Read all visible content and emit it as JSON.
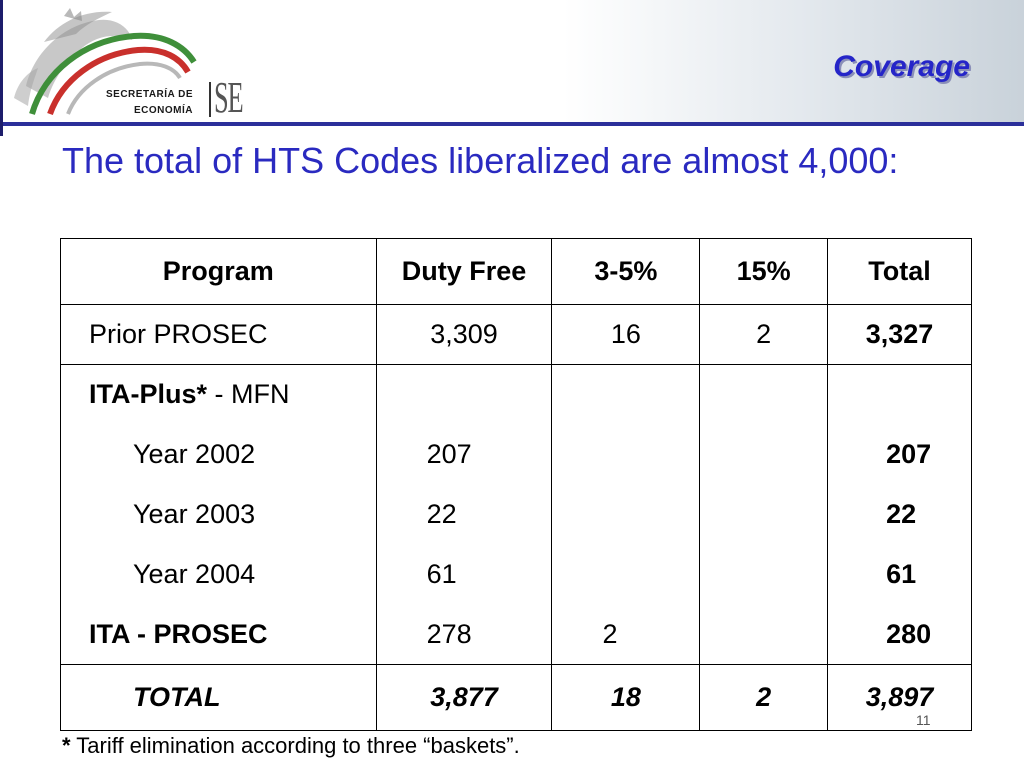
{
  "header": {
    "title": "Coverage",
    "logo_line1": "SECRETARÍA DE",
    "logo_line2": "ECONOMÍA",
    "logo_mark": "SE"
  },
  "intro_text": "The total of HTS Codes liberalized are almost 4,000:",
  "table": {
    "headers": [
      "Program",
      "Duty Free",
      "3-5%",
      "15%",
      "Total"
    ],
    "rows": [
      {
        "label": "Prior PROSEC",
        "duty_free": "3,309",
        "pct_3_5": "16",
        "pct_15": "2",
        "total": "3,327"
      },
      {
        "label_bold": "ITA-Plus*",
        "label_rest": " - MFN",
        "duty_free": "",
        "pct_3_5": "",
        "pct_15": "",
        "total": ""
      },
      {
        "label": "Year 2002",
        "duty_free": "207",
        "pct_3_5": "",
        "pct_15": "",
        "total": "207"
      },
      {
        "label": "Year 2003",
        "duty_free": "22",
        "pct_3_5": "",
        "pct_15": "",
        "total": "22"
      },
      {
        "label": "Year 2004",
        "duty_free": "61",
        "pct_3_5": "",
        "pct_15": "",
        "total": "61"
      },
      {
        "label": "ITA - PROSEC",
        "duty_free": "278",
        "pct_3_5": "2",
        "pct_15": "",
        "total": "280"
      },
      {
        "label": "TOTAL",
        "duty_free": "3,877",
        "pct_3_5": "18",
        "pct_15": "2",
        "total": "3,897"
      }
    ]
  },
  "page_number": "11",
  "footnote": {
    "star": "*",
    "text": " Tariff elimination according to three “baskets”."
  },
  "colors": {
    "title": "#2525c8",
    "intro": "#2a2ac0",
    "header_rule": "#2b2f9a",
    "logo_green": "#3f8f3a",
    "logo_red": "#c9302c"
  }
}
